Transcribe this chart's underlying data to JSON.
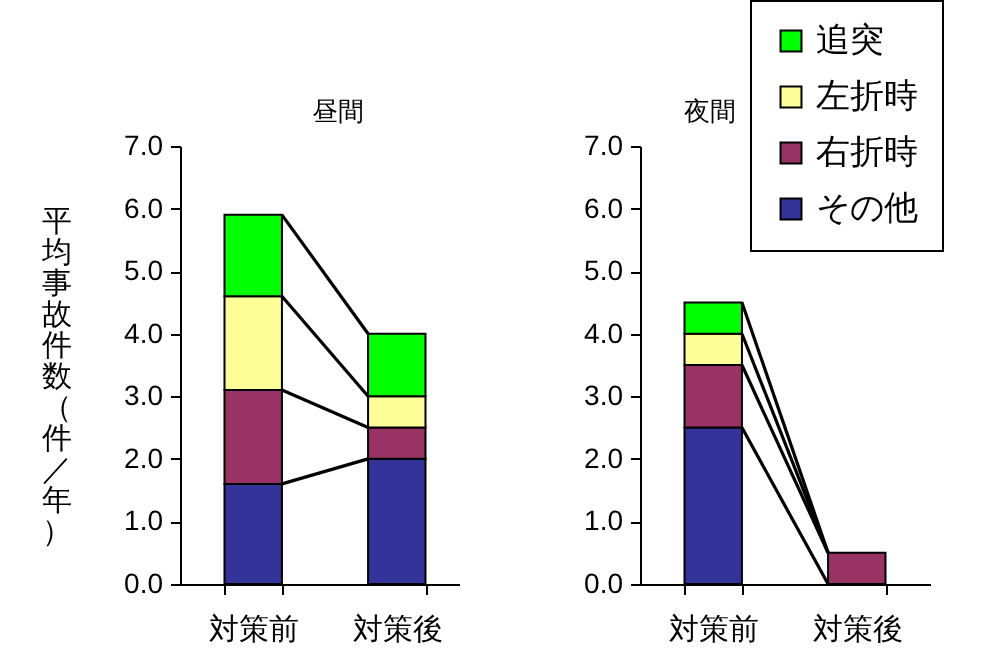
{
  "chart_data": [
    {
      "type": "bar",
      "stacked": true,
      "title": "昼間",
      "ylabel": "平均事故件数（件／年）",
      "categories": [
        "対策前",
        "対策後"
      ],
      "ylim": [
        0,
        7
      ],
      "yticks": [
        {
          "value": 0,
          "label": "0.0"
        },
        {
          "value": 1,
          "label": "1.0"
        },
        {
          "value": 2,
          "label": "2.0"
        },
        {
          "value": 3,
          "label": "3.0"
        },
        {
          "value": 4,
          "label": "4.0"
        },
        {
          "value": 5,
          "label": "5.0"
        },
        {
          "value": 6,
          "label": "6.0"
        },
        {
          "value": 7,
          "label": "7.0"
        }
      ],
      "series": [
        {
          "color": "#333399",
          "values": [
            1.6,
            2.0
          ]
        },
        {
          "color": "#993366",
          "values": [
            1.5,
            0.5
          ]
        },
        {
          "color": "#ffff99",
          "values": [
            1.5,
            0.5
          ]
        },
        {
          "color": "#00ff00",
          "values": [
            1.3,
            1.0
          ]
        }
      ]
    },
    {
      "type": "bar",
      "stacked": true,
      "title": "夜間",
      "legend": "top right",
      "categories": [
        "対策前",
        "対策後"
      ],
      "ylim": [
        0,
        7
      ],
      "yticks": [
        {
          "value": 0,
          "label": "0.0"
        },
        {
          "value": 1,
          "label": "1.0"
        },
        {
          "value": 2,
          "label": "2.0"
        },
        {
          "value": 3,
          "label": "3.0"
        },
        {
          "value": 4,
          "label": "4.0"
        },
        {
          "value": 5,
          "label": "5.0"
        },
        {
          "value": 6,
          "label": "6.0"
        },
        {
          "value": 7,
          "label": "7.0"
        }
      ],
      "series": [
        {
          "name": "その他",
          "color": "#333399",
          "values": [
            2.5,
            0
          ]
        },
        {
          "name": "右折時",
          "color": "#993366",
          "values": [
            1.0,
            0.5
          ]
        },
        {
          "name": "左折時",
          "color": "#ffff99",
          "values": [
            0.5,
            0
          ]
        },
        {
          "name": "追突",
          "color": "#00ff00",
          "values": [
            0.5,
            0
          ]
        }
      ]
    }
  ]
}
